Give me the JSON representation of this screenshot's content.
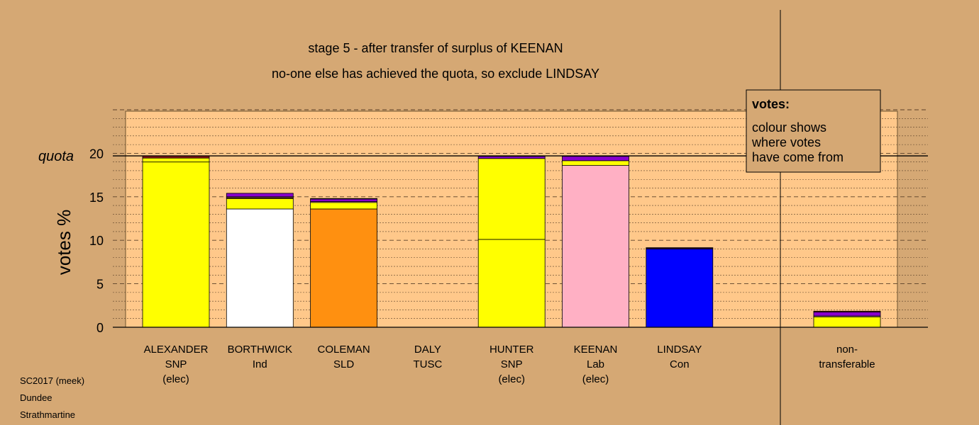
{
  "chart_data": {
    "type": "bar",
    "title": "stage 5 - after transfer of surplus of KEENAN",
    "subtitle": "no-one else has achieved the quota, so exclude LINDSAY",
    "ylabel": "votes %",
    "ylim": [
      0,
      25
    ],
    "yticks": [
      0,
      5,
      10,
      15,
      20
    ],
    "quota": {
      "label": "quota",
      "value": 19.7
    },
    "grid": true,
    "legend": {
      "placement": "top-right",
      "title": "votes:",
      "lines": [
        "colour shows",
        "where votes",
        "have come from"
      ]
    },
    "colors": {
      "SNP": "#ffff00",
      "Ind": "#ffffff",
      "SLD": "#ff9010",
      "Lab": "#ffb0c4",
      "Con": "#0000ff",
      "TUSC": "#8b1a1a",
      "transfer_purple": "#8800cc",
      "background": "#d5a874",
      "plot_background": "#ffc88a"
    },
    "categories": [
      {
        "name": "ALEXANDER",
        "party": "SNP",
        "status": "(elec)",
        "segments": [
          {
            "source": "ALEXANDER",
            "color": "#ffff00",
            "value": 19.0
          },
          {
            "source": "HUNTER",
            "color": "#ffff00",
            "value": 0.45
          },
          {
            "source": "quota surplus",
            "color": "#8b1a1a",
            "value": 0.25
          }
        ]
      },
      {
        "name": "BORTHWICK",
        "party": "Ind",
        "status": "",
        "segments": [
          {
            "source": "BORTHWICK",
            "color": "#ffffff",
            "value": 13.6
          },
          {
            "source": "SNP transfers",
            "color": "#ffff00",
            "value": 1.2
          },
          {
            "source": "TUSC transfers",
            "color": "#8b1a1a",
            "value": 0.1
          },
          {
            "source": "KEENAN transfers",
            "color": "#ffb0c4",
            "value": 0.1
          },
          {
            "source": "other transfers",
            "color": "#8800cc",
            "value": 0.4
          }
        ]
      },
      {
        "name": "COLEMAN",
        "party": "SLD",
        "status": "",
        "segments": [
          {
            "source": "COLEMAN",
            "color": "#ff9010",
            "value": 13.6
          },
          {
            "source": "SNP transfers",
            "color": "#ffff00",
            "value": 0.75
          },
          {
            "source": "KEENAN transfers",
            "color": "#ffb0c4",
            "value": 0.1
          },
          {
            "source": "other transfers",
            "color": "#8800cc",
            "value": 0.3
          },
          {
            "source": "TUSC transfers",
            "color": "#8b1a1a",
            "value": 0.05
          }
        ]
      },
      {
        "name": "DALY",
        "party": "TUSC",
        "status": "",
        "segments": []
      },
      {
        "name": "HUNTER",
        "party": "SNP",
        "status": "(elec)",
        "segments": [
          {
            "source": "HUNTER",
            "color": "#ffff00",
            "value": 10.1
          },
          {
            "source": "ALEXANDER",
            "color": "#ffff00",
            "value": 9.3
          },
          {
            "source": "other transfers",
            "color": "#8800cc",
            "value": 0.25
          },
          {
            "source": "TUSC transfers",
            "color": "#8b1a1a",
            "value": 0.05
          }
        ]
      },
      {
        "name": "KEENAN",
        "party": "Lab",
        "status": "(elec)",
        "segments": [
          {
            "source": "KEENAN",
            "color": "#ffb0c4",
            "value": 18.6
          },
          {
            "source": "SNP transfers",
            "color": "#ffff00",
            "value": 0.55
          },
          {
            "source": "other transfers",
            "color": "#8800cc",
            "value": 0.5
          },
          {
            "source": "TUSC transfers",
            "color": "#8b1a1a",
            "value": 0.05
          }
        ]
      },
      {
        "name": "LINDSAY",
        "party": "Con",
        "status": "",
        "segments": [
          {
            "source": "LINDSAY",
            "color": "#0000ff",
            "value": 9.0
          },
          {
            "source": "other transfers",
            "color": "#8800cc",
            "value": 0.1
          },
          {
            "source": "TUSC transfers",
            "color": "#8b1a1a",
            "value": 0.05
          }
        ]
      },
      {
        "name": "non-",
        "party": "transferable",
        "status": "",
        "gap_before": true,
        "segments": [
          {
            "source": "SNP transfers",
            "color": "#ffff00",
            "value": 1.2
          },
          {
            "source": "KEENAN transfers",
            "color": "#ffb0c4",
            "value": 0.1
          },
          {
            "source": "other transfers",
            "color": "#8800cc",
            "value": 0.45
          },
          {
            "source": "TUSC transfers",
            "color": "#8b1a1a",
            "value": 0.1
          }
        ]
      }
    ]
  },
  "footer": {
    "lines": [
      "SC2017 (meek)",
      "Dundee",
      "Strathmartine"
    ]
  }
}
